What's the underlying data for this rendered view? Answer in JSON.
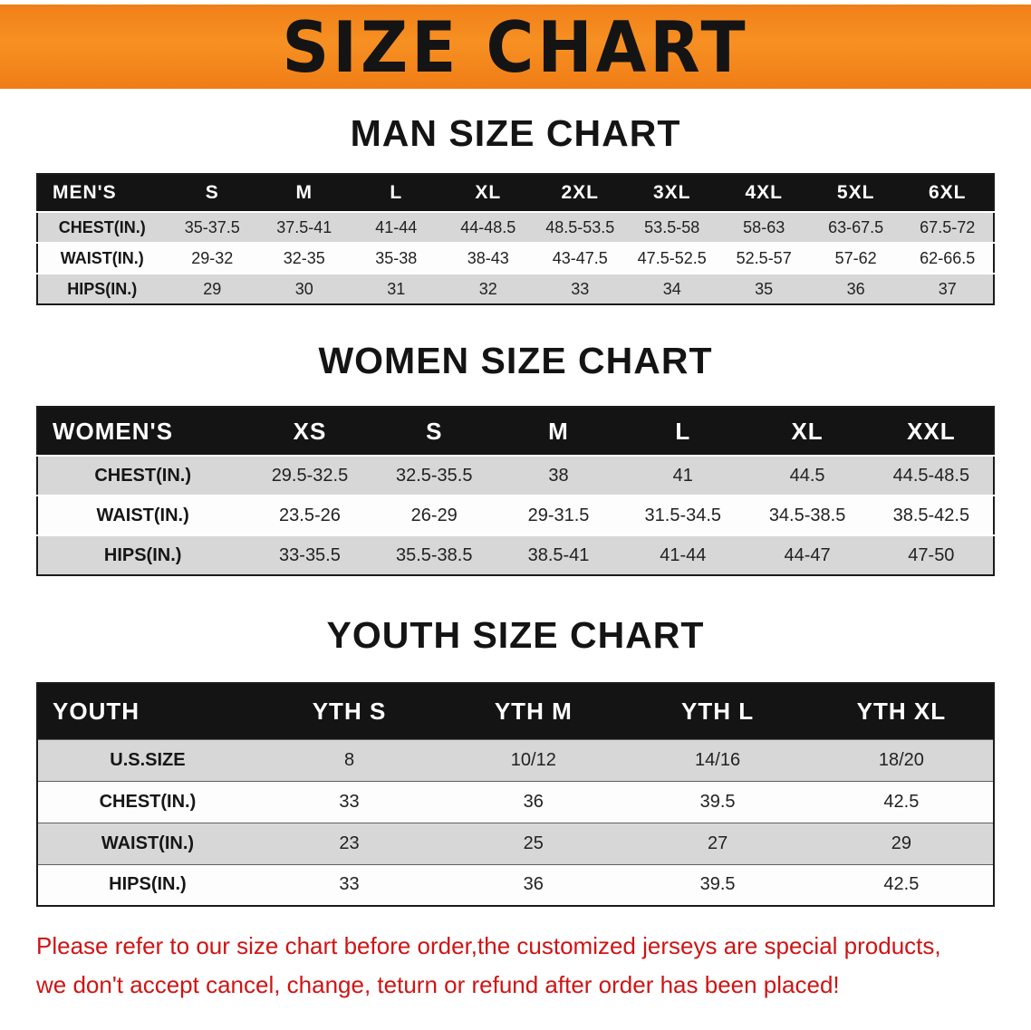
{
  "banner": {
    "title": "SIZE CHART"
  },
  "colors": {
    "banner_bg": "#f5851c",
    "banner_text": "#141414",
    "table_header_bg": "#141414",
    "table_header_text": "#ffffff",
    "row_shaded": "#d7d7d7",
    "row_plain": "#ffffff",
    "disclaimer_text": "#cf1413"
  },
  "sections": [
    {
      "id": "men",
      "heading": "MAN SIZE CHART",
      "table": {
        "header": [
          "MEN'S",
          "S",
          "M",
          "L",
          "XL",
          "2XL",
          "3XL",
          "4XL",
          "5XL",
          "6XL"
        ],
        "rows": [
          {
            "label": "CHEST(IN.)",
            "values": [
              "35-37.5",
              "37.5-41",
              "41-44",
              "44-48.5",
              "48.5-53.5",
              "53.5-58",
              "58-63",
              "63-67.5",
              "67.5-72"
            ]
          },
          {
            "label": "WAIST(IN.)",
            "values": [
              "29-32",
              "32-35",
              "35-38",
              "38-43",
              "43-47.5",
              "47.5-52.5",
              "52.5-57",
              "57-62",
              "62-66.5"
            ]
          },
          {
            "label": "HIPS(IN.)",
            "values": [
              "29",
              "30",
              "31",
              "32",
              "33",
              "34",
              "35",
              "36",
              "37"
            ]
          }
        ]
      }
    },
    {
      "id": "women",
      "heading": "WOMEN SIZE CHART",
      "table": {
        "header": [
          "WOMEN'S",
          "XS",
          "S",
          "M",
          "L",
          "XL",
          "XXL"
        ],
        "rows": [
          {
            "label": "CHEST(IN.)",
            "values": [
              "29.5-32.5",
              "32.5-35.5",
              "38",
              "41",
              "44.5",
              "44.5-48.5"
            ]
          },
          {
            "label": "WAIST(IN.)",
            "values": [
              "23.5-26",
              "26-29",
              "29-31.5",
              "31.5-34.5",
              "34.5-38.5",
              "38.5-42.5"
            ]
          },
          {
            "label": "HIPS(IN.)",
            "values": [
              "33-35.5",
              "35.5-38.5",
              "38.5-41",
              "41-44",
              "44-47",
              "47-50"
            ]
          }
        ]
      }
    },
    {
      "id": "youth",
      "heading": "YOUTH SIZE CHART",
      "table": {
        "header": [
          "YOUTH",
          "YTH S",
          "YTH M",
          "YTH L",
          "YTH XL"
        ],
        "rows": [
          {
            "label": "U.S.SIZE",
            "values": [
              "8",
              "10/12",
              "14/16",
              "18/20"
            ]
          },
          {
            "label": "CHEST(IN.)",
            "values": [
              "33",
              "36",
              "39.5",
              "42.5"
            ]
          },
          {
            "label": "WAIST(IN.)",
            "values": [
              "23",
              "25",
              "27",
              "29"
            ]
          },
          {
            "label": "HIPS(IN.)",
            "values": [
              "33",
              "36",
              "39.5",
              "42.5"
            ]
          }
        ]
      }
    }
  ],
  "footer": {
    "line1": "Please refer to our size chart before order,the customized jerseys are special products,",
    "line2": "we don't accept cancel, change, teturn or refund after order has been placed!"
  }
}
